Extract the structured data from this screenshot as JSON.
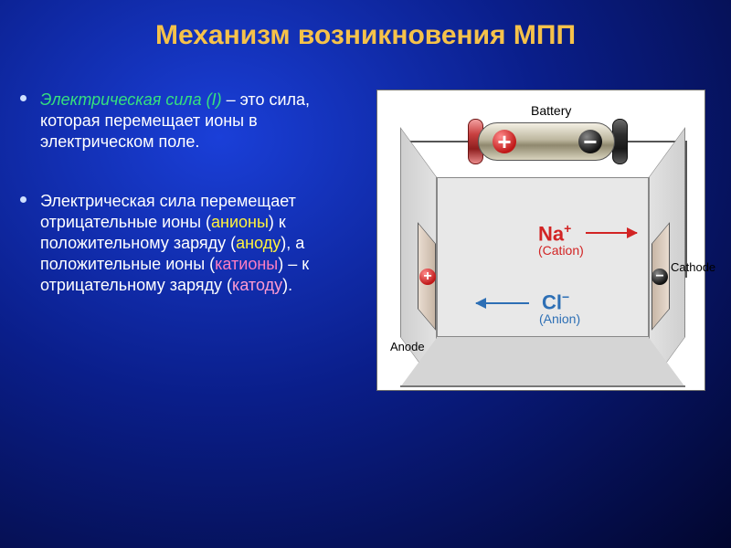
{
  "colors": {
    "title": "#f6c24a",
    "term1": "#36e07e",
    "anion": "#fff33d",
    "anode": "#fff33d",
    "cation": "#ff7ec2",
    "cathode": "#ff9bd2",
    "bodytext": "#ffffff",
    "bullet": "#cfe0ff",
    "bg_grad_inner": "#1a3fd8",
    "bg_grad_outer": "#02062e",
    "na_color": "#d22424",
    "cl_color": "#2d6fb5"
  },
  "title": "Механизм возникновения МПП",
  "para1": {
    "term": "Электрическая сила (I)",
    "rest": " – это сила, которая перемещает ионы в электрическом поле."
  },
  "para2": {
    "t1": "Электрическая сила перемещает отрицательные ионы (",
    "anion": "анионы",
    "t2": ") к положительному заряду (",
    "anode": "аноду",
    "t3": "), а положительные ионы (",
    "cation": "катионы",
    "t4": ") – к отрицательному заряду (",
    "cathode": "катоду",
    "t5": ")."
  },
  "diagram": {
    "battery_label": "Battery",
    "plus": "+",
    "minus": "−",
    "na": "Na",
    "na_sup": "+",
    "na_sub": "(Cation)",
    "cl": "Cl",
    "cl_sup": "−",
    "cl_sub": "(Anion)",
    "anode": "Anode",
    "cathode": "Cathode"
  }
}
